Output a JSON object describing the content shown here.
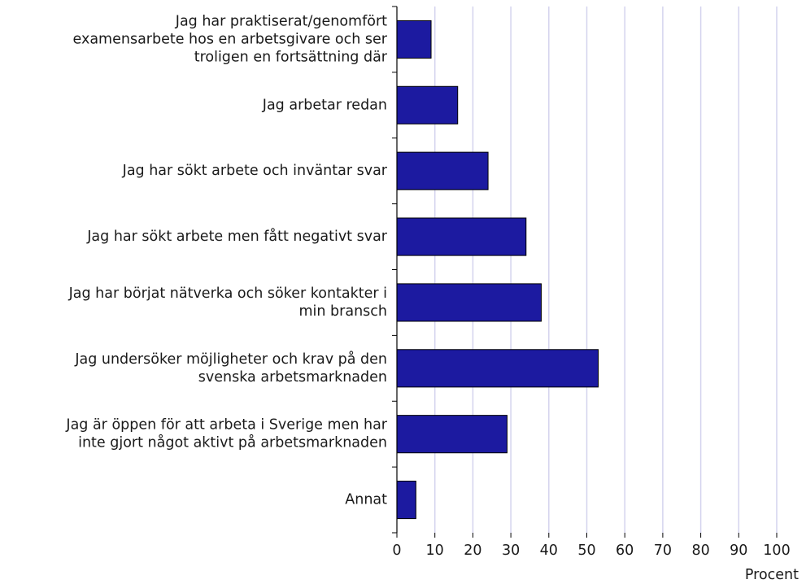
{
  "chart_data": {
    "type": "barh",
    "categories": [
      "Jag har praktiserat/genomfört\nexamensarbete hos en arbetsgivare och ser\ntroligen en fortsättning där",
      "Jag arbetar redan",
      "Jag har sökt arbete och inväntar svar",
      "Jag har sökt arbete men fått negativt svar",
      "Jag har börjat nätverka och söker kontakter i\nmin bransch",
      "Jag undersöker möjligheter och krav på den\nsvenska arbetsmarknaden",
      "Jag är öppen för att arbeta i Sverige men har\ninte gjort något aktivt på arbetsmarknaden",
      "Annat"
    ],
    "values": [
      9,
      16,
      24,
      34,
      38,
      53,
      29,
      5
    ],
    "color": "#1c1aa0",
    "xlabel": "Procent",
    "xlim": [
      0,
      100
    ],
    "xticks": [
      0,
      10,
      20,
      30,
      40,
      50,
      60,
      70,
      80,
      90,
      100
    ],
    "grid": true
  }
}
